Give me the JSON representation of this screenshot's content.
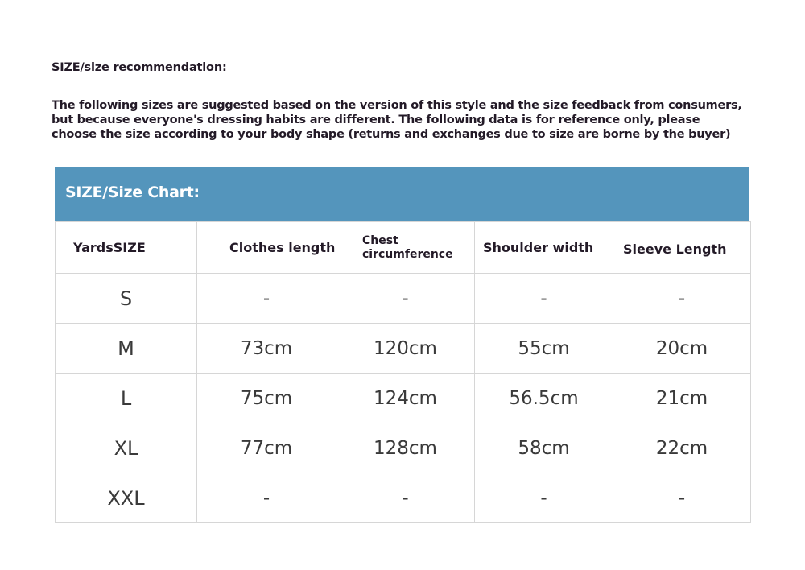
{
  "title": "SIZE/size recommendation:",
  "intro": "The following sizes are suggested based on the version of this style and the size feedback from consumers,\nbut because everyone's dressing habits are different. The following data is for reference only, please\nchoose the size according to your body shape (returns and exchanges due to size are borne by the buyer)",
  "chart": {
    "heading": "SIZE/Size Chart:",
    "header_color": "#5495bc",
    "columns": [
      "YardsSIZE",
      "Clothes length",
      "Chest circumference",
      "Shoulder width",
      "Sleeve Length"
    ],
    "rows": [
      [
        "S",
        "-",
        "-",
        "-",
        "-"
      ],
      [
        "M",
        "73cm",
        "120cm",
        "55cm",
        "20cm"
      ],
      [
        "L",
        "75cm",
        "124cm",
        "56.5cm",
        "21cm"
      ],
      [
        "XL",
        "77cm",
        "128cm",
        "58cm",
        "22cm"
      ],
      [
        "XXL",
        "-",
        "-",
        "-",
        "-"
      ]
    ]
  }
}
